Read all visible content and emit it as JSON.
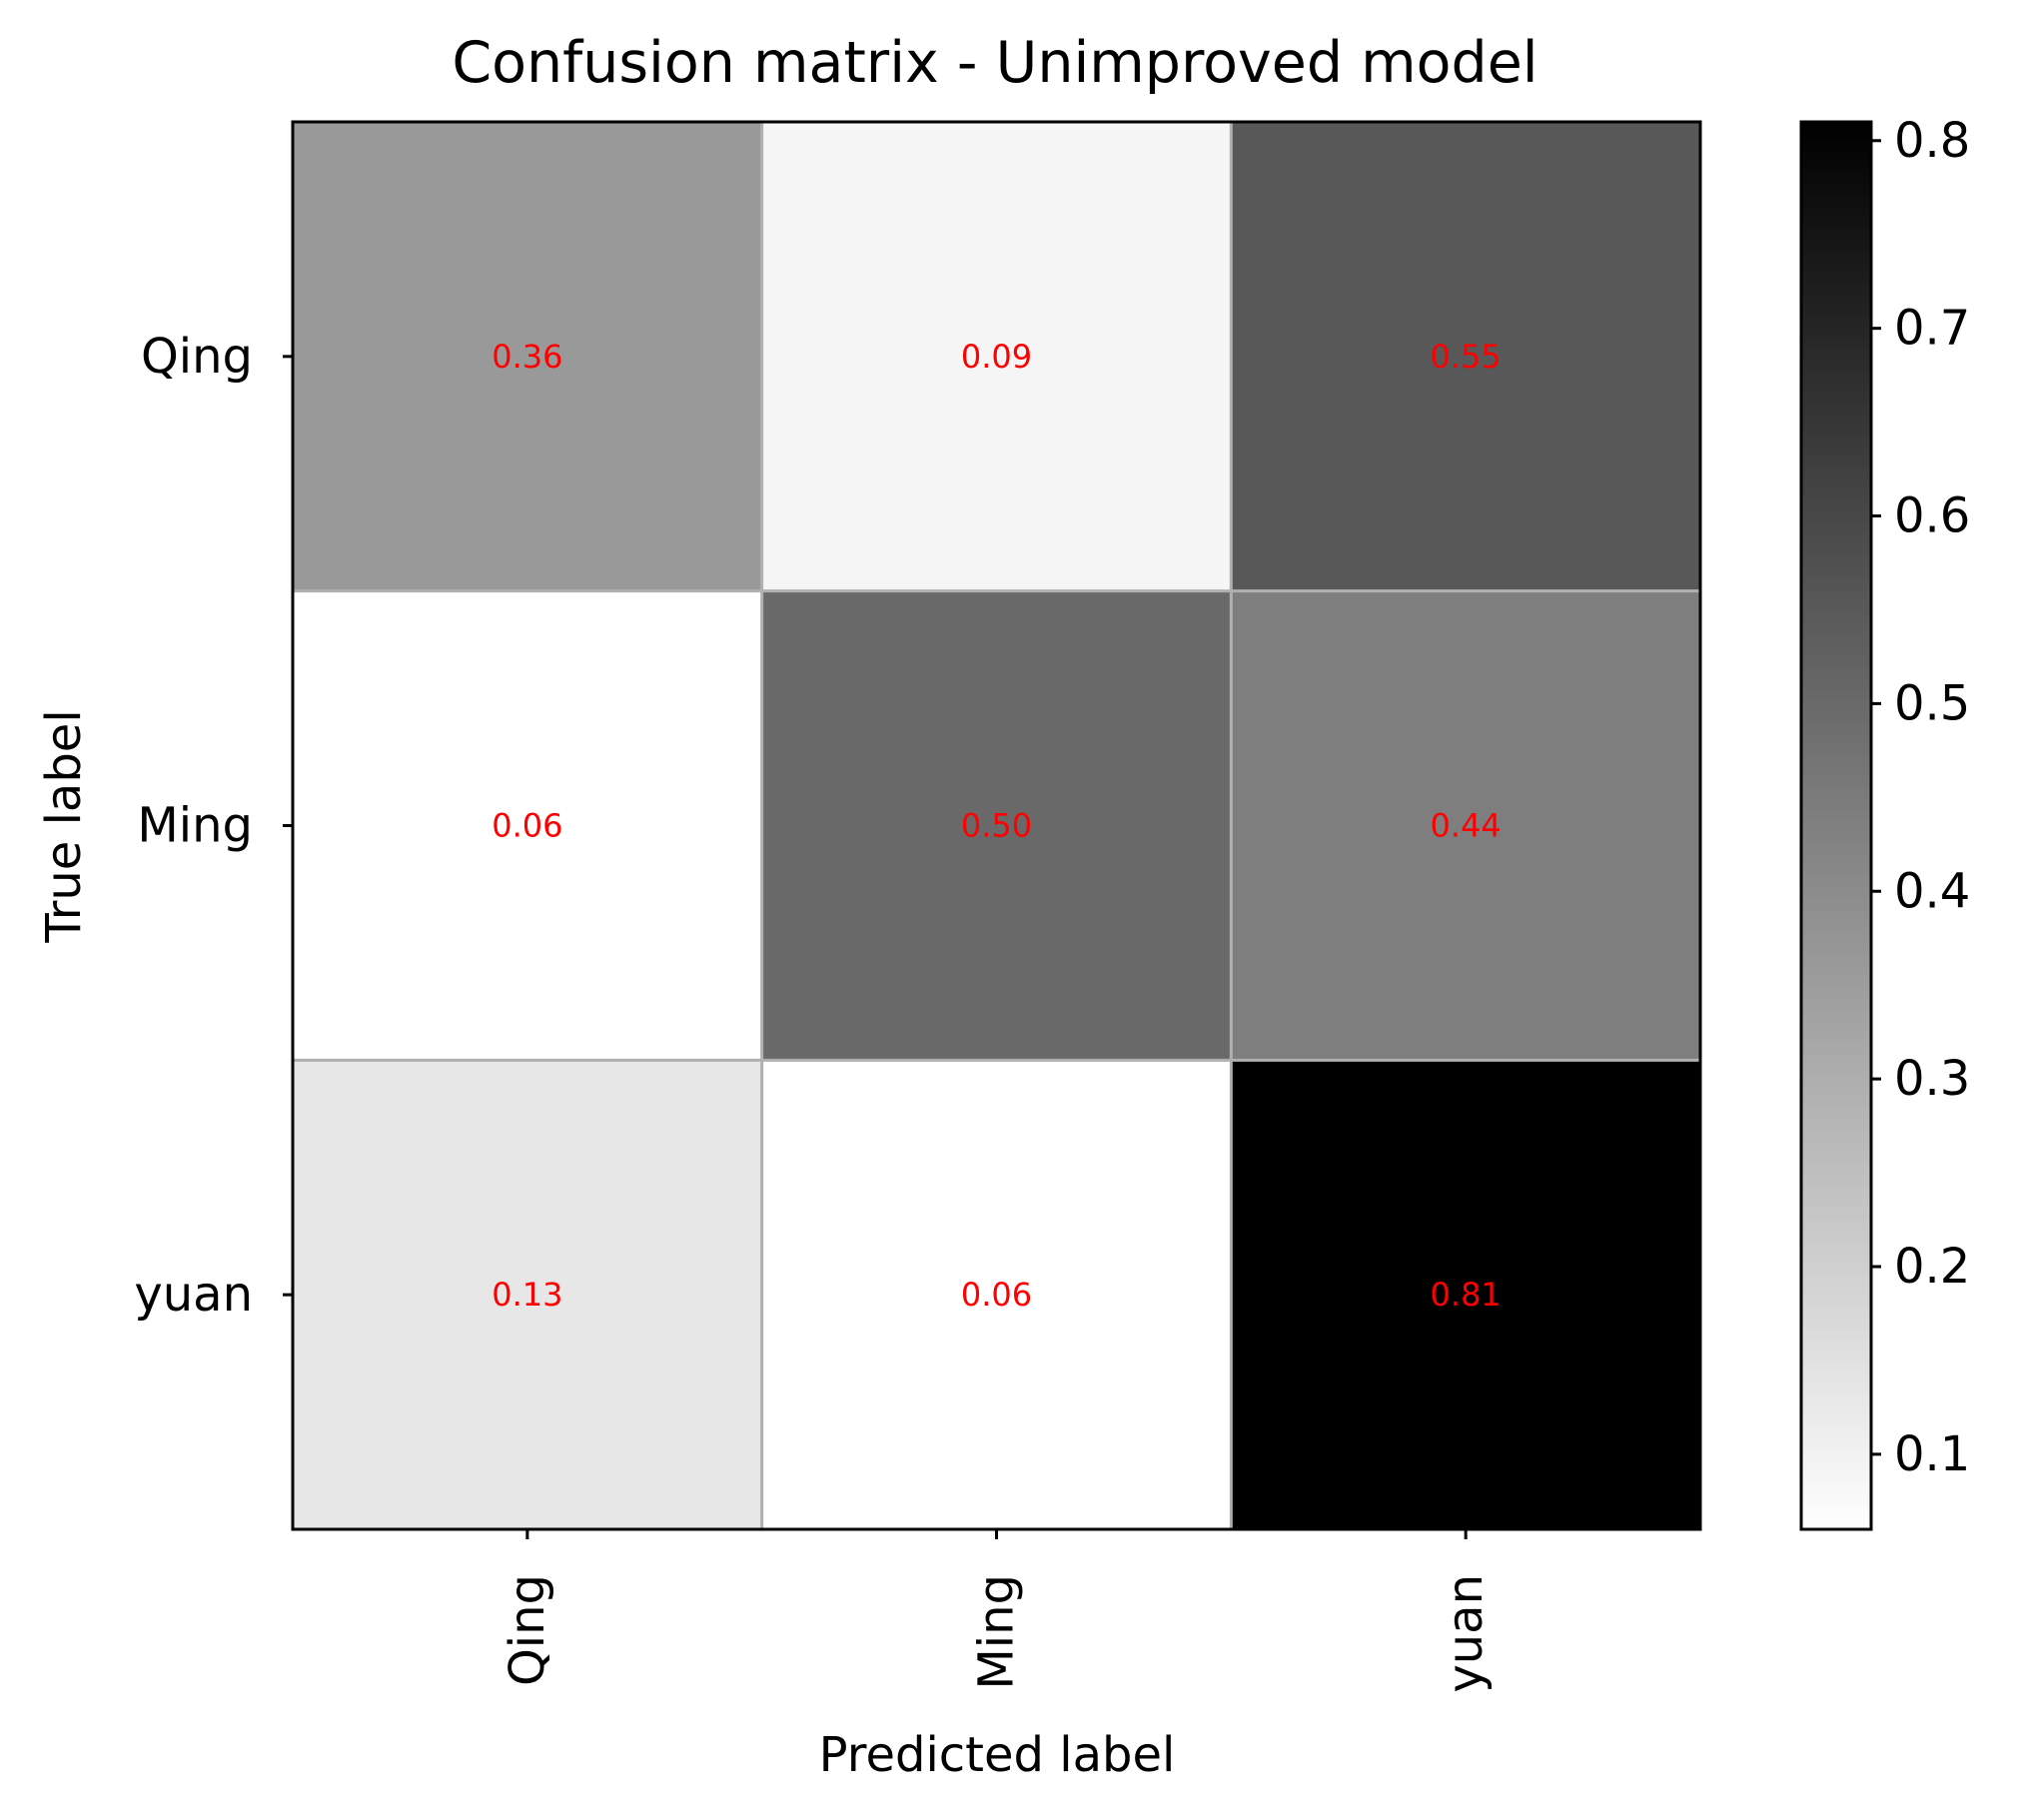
{
  "chart_data": {
    "type": "heatmap",
    "title": "Confusion matrix - Unimproved model",
    "xlabel": "Predicted label",
    "ylabel": "True label",
    "x_categories": [
      "Qing",
      "Ming",
      "yuan"
    ],
    "y_categories": [
      "Qing",
      "Ming",
      "yuan"
    ],
    "values": [
      [
        0.36,
        0.09,
        0.55
      ],
      [
        0.06,
        0.5,
        0.44
      ],
      [
        0.13,
        0.06,
        0.81
      ]
    ],
    "cell_labels": [
      [
        "0.36",
        "0.09",
        "0.55"
      ],
      [
        "0.06",
        "0.50",
        "0.44"
      ],
      [
        "0.13",
        "0.06",
        "0.81"
      ]
    ],
    "colormap": "Greys",
    "value_range": [
      0.06,
      0.81
    ],
    "colorbar_ticks": [
      0.1,
      0.2,
      0.3,
      0.4,
      0.5,
      0.6,
      0.7,
      0.8
    ],
    "colorbar_tick_labels": [
      "0.1",
      "0.2",
      "0.3",
      "0.4",
      "0.5",
      "0.6",
      "0.7",
      "0.8"
    ],
    "annotation_color": "#ff0000",
    "grid_color": "#b0b0b0",
    "axis_color": "#000000"
  }
}
